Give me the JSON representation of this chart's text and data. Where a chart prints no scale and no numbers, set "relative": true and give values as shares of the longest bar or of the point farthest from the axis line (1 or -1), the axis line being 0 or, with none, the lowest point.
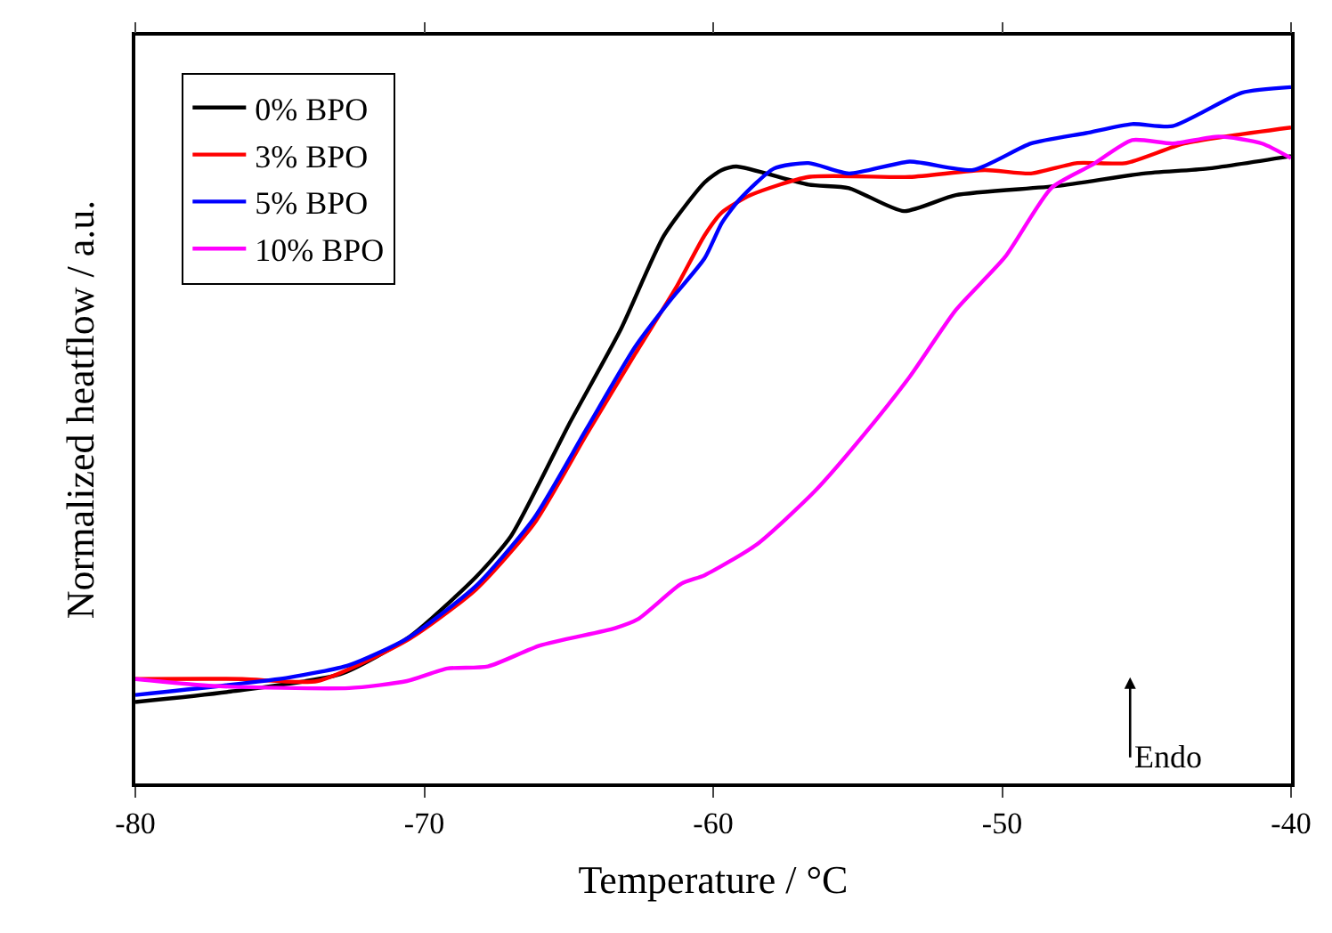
{
  "chart_data": {
    "type": "line",
    "xlabel": "Temperature / °C",
    "ylabel": "Normalized heatflow / a.u.",
    "relative": true,
    "xlim": [
      -80,
      -40
    ],
    "xticks": [
      -80,
      -70,
      -60,
      -50,
      -40
    ],
    "legend": "top left",
    "marker": "none",
    "line_style": "solid",
    "annotations": [
      "Endo"
    ],
    "series": [
      {
        "name": "0% BPO",
        "color": "#000000",
        "x": [
          -80,
          -76.7,
          -72.9,
          -70.5,
          -68.2,
          -67,
          -65,
          -63.2,
          -61.7,
          -60.3,
          -59.7,
          -59.2,
          -56.7,
          -55.3,
          -53.4,
          -51.6,
          -48.1,
          -45.1,
          -42.9,
          -40
        ],
        "values": [
          0.117,
          0.132,
          0.157,
          0.211,
          0.297,
          0.355,
          0.515,
          0.652,
          0.787,
          0.863,
          0.881,
          0.886,
          0.86,
          0.855,
          0.822,
          0.845,
          0.858,
          0.876,
          0.883,
          0.901
        ]
      },
      {
        "name": "3% BPO",
        "color": "#ff0000",
        "x": [
          -80,
          -76.3,
          -73.7,
          -70.5,
          -68.2,
          -66.2,
          -64.4,
          -62.7,
          -61.3,
          -60.3,
          -59.7,
          -58.7,
          -56.7,
          -53.2,
          -50.6,
          -49,
          -47.4,
          -45.7,
          -43.7,
          -40
        ],
        "values": [
          0.15,
          0.15,
          0.147,
          0.208,
          0.279,
          0.373,
          0.5,
          0.617,
          0.711,
          0.787,
          0.82,
          0.845,
          0.871,
          0.871,
          0.881,
          0.876,
          0.891,
          0.891,
          0.919,
          0.942
        ]
      },
      {
        "name": "5% BPO",
        "color": "#0000ff",
        "x": [
          -80,
          -74.7,
          -72.6,
          -70.6,
          -68.2,
          -66.2,
          -64.4,
          -62.7,
          -61.5,
          -60.3,
          -59.7,
          -59.1,
          -57.9,
          -56.7,
          -55.3,
          -53.2,
          -51,
          -49,
          -47.1,
          -45.5,
          -44.1,
          -41.7,
          -40
        ],
        "values": [
          0.127,
          0.152,
          0.17,
          0.208,
          0.284,
          0.381,
          0.508,
          0.627,
          0.693,
          0.754,
          0.805,
          0.838,
          0.883,
          0.891,
          0.876,
          0.893,
          0.881,
          0.919,
          0.934,
          0.947,
          0.944,
          0.992,
          1
        ]
      },
      {
        "name": "10% BPO",
        "color": "#ff00ff",
        "x": [
          -80,
          -77.3,
          -72.6,
          -70.6,
          -69.2,
          -67.8,
          -66,
          -63.4,
          -62.6,
          -61.1,
          -60.3,
          -58.5,
          -56.5,
          -54.8,
          -53.2,
          -51.6,
          -49.9,
          -48.3,
          -46.9,
          -45.5,
          -44.1,
          -42.5,
          -41,
          -40
        ],
        "values": [
          0.15,
          0.14,
          0.137,
          0.147,
          0.165,
          0.168,
          0.198,
          0.223,
          0.236,
          0.287,
          0.299,
          0.343,
          0.419,
          0.5,
          0.584,
          0.68,
          0.756,
          0.855,
          0.888,
          0.924,
          0.919,
          0.929,
          0.919,
          0.898
        ]
      }
    ]
  }
}
